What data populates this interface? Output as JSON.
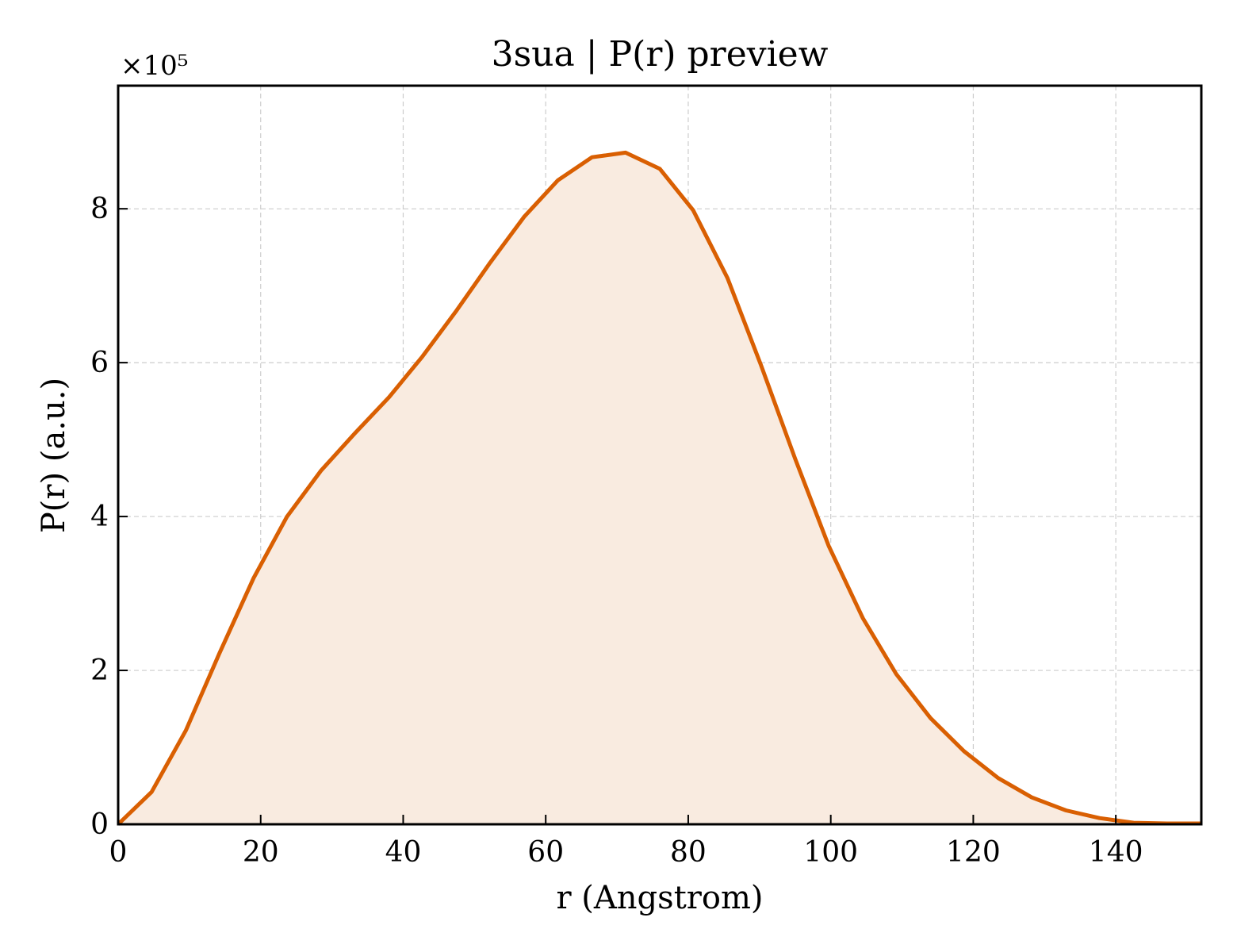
{
  "chart_data": {
    "type": "area",
    "title": "3sua | P(r) preview",
    "xlabel": "r (Angstrom)",
    "ylabel": "P(r) (a.u.)",
    "y_multiplier_label": "×10⁵",
    "xlim": [
      0,
      152
    ],
    "ylim": [
      0,
      9.6
    ],
    "xticks": [
      0,
      20,
      40,
      60,
      80,
      100,
      120,
      140
    ],
    "yticks": [
      0,
      2,
      4,
      6,
      8
    ],
    "grid": true,
    "line_color": "#d95f02",
    "fill_color": "#f9ebe0",
    "series": [
      {
        "x": [
          0,
          4.7,
          9.5,
          14.2,
          19.0,
          23.7,
          28.5,
          33.2,
          38.0,
          42.7,
          47.5,
          52.2,
          57.0,
          61.7,
          66.5,
          71.2,
          76.0,
          80.7,
          85.5,
          90.2,
          95.0,
          99.7,
          104.5,
          109.2,
          114.0,
          118.7,
          123.5,
          128.2,
          133.0,
          137.7,
          142.5,
          147.2,
          152.0
        ],
        "y": [
          0,
          0.42,
          1.22,
          2.22,
          3.2,
          4.0,
          4.6,
          5.08,
          5.55,
          6.08,
          6.68,
          7.3,
          7.9,
          8.37,
          8.67,
          8.73,
          8.52,
          7.98,
          7.1,
          5.97,
          4.75,
          3.62,
          2.68,
          1.95,
          1.38,
          0.95,
          0.6,
          0.35,
          0.18,
          0.08,
          0.02,
          0.01,
          0.01
        ]
      }
    ]
  }
}
